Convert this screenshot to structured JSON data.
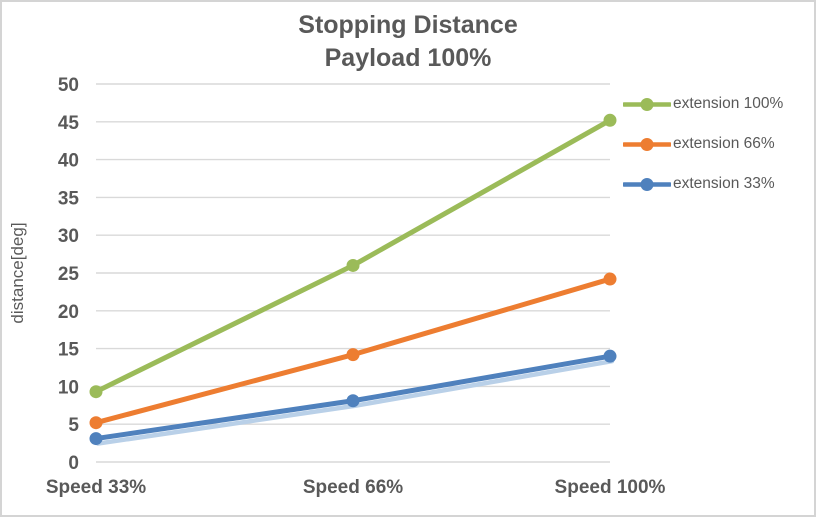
{
  "chart_data": {
    "type": "line",
    "title": "Stopping Distance",
    "subtitle": "Payload 100%",
    "ylabel": "distance[deg]",
    "xlabel": "",
    "categories": [
      "Speed 33%",
      "Speed 66%",
      "Speed 100%"
    ],
    "series": [
      {
        "name": "extension 100%",
        "color": "#9bbb59",
        "values": [
          9.3,
          26.0,
          45.2
        ]
      },
      {
        "name": "extension 66%",
        "color": "#ed7d31",
        "values": [
          5.2,
          14.2,
          24.2
        ]
      },
      {
        "name": "extension 33%",
        "color": "#4f81bd",
        "values": [
          3.1,
          8.1,
          14.0
        ],
        "shadow_color": "#b9d0e8"
      }
    ],
    "ylim": [
      0,
      50
    ],
    "ytick_step": 5,
    "yticks": [
      0,
      5,
      10,
      15,
      20,
      25,
      30,
      35,
      40,
      45,
      50
    ],
    "grid": true,
    "legend_position": "right",
    "marker": "circle",
    "colors": {
      "text": "#595959",
      "grid": "#d9d9d9",
      "border": "#d4d4d4",
      "background": "#ffffff"
    }
  }
}
